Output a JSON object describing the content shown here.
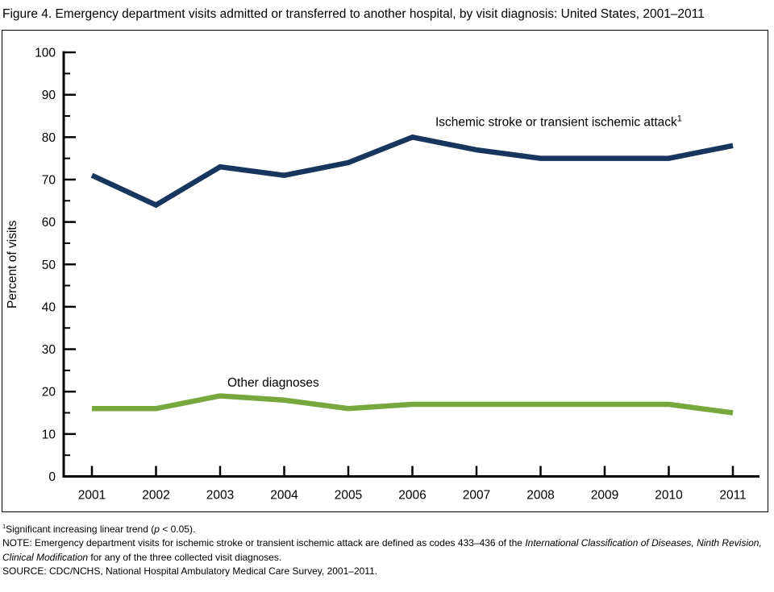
{
  "title": "Figure 4. Emergency department visits admitted or transferred to another hospital, by visit diagnosis: United States, 2001–2011",
  "chart_data": {
    "type": "line",
    "title": "",
    "xlabel": "",
    "ylabel": "Percent of visits",
    "ylim": [
      0,
      100
    ],
    "y_major_step": 10,
    "y_minor_step": 5,
    "grid": false,
    "legend_position": "inline-labels",
    "axis_color": "#000000",
    "categories": [
      "2001",
      "2002",
      "2003",
      "2004",
      "2005",
      "2006",
      "2007",
      "2008",
      "2009",
      "2010",
      "2011"
    ],
    "series": [
      {
        "name": "Ischemic stroke or transient ischemic attack",
        "name_sup": "1",
        "color": "#17365d",
        "values": [
          71,
          64,
          73,
          71,
          74,
          80,
          77,
          75,
          75,
          75,
          78
        ]
      },
      {
        "name": "Other diagnoses",
        "name_sup": "",
        "color": "#76a83e",
        "values": [
          16,
          16,
          19,
          18,
          16,
          17,
          17,
          17,
          17,
          17,
          15
        ]
      }
    ]
  },
  "footnotes": [
    {
      "segments": [
        {
          "text": "1",
          "sup": true
        },
        {
          "text": "Significant increasing linear trend ("
        },
        {
          "text": "p",
          "italic": true
        },
        {
          "text": " < 0.05)."
        }
      ]
    },
    {
      "segments": [
        {
          "text": "NOTE: Emergency department visits for ischemic stroke or transient ischemic attack are defined as codes 433–436 of the "
        },
        {
          "text": "International Classification of Diseases, Ninth Revision, Clinical Modification",
          "italic": true
        },
        {
          "text": " for any of the three collected visit diagnoses."
        }
      ]
    },
    {
      "segments": [
        {
          "text": "SOURCE: CDC/NCHS, National Hospital Ambulatory Medical Care Survey, 2001–2011."
        }
      ]
    }
  ]
}
